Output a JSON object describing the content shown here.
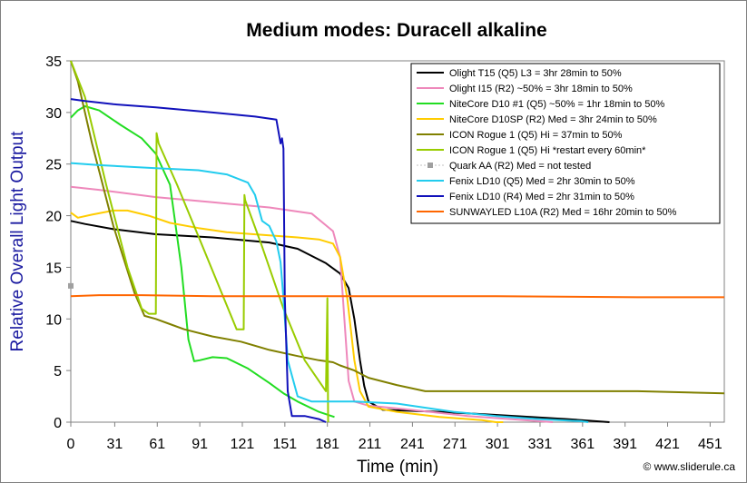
{
  "chart_data": {
    "type": "line",
    "title": "Medium modes: Duracell alkaline",
    "xlabel": "Time (min)",
    "ylabel": "Relative Overall Light Output",
    "xlim": [
      0,
      461
    ],
    "ylim": [
      0,
      35
    ],
    "xticks": [
      0,
      31,
      61,
      91,
      121,
      151,
      181,
      211,
      241,
      271,
      301,
      331,
      361,
      391,
      421,
      451
    ],
    "yticks": [
      0,
      5,
      10,
      15,
      20,
      25,
      30,
      35
    ],
    "legend_position": "top-right",
    "grid": false,
    "credit": "© www.sliderule.ca",
    "series": [
      {
        "name": "Olight T15 (Q5) L3 = 3hr 28min to 50%",
        "color": "#000000",
        "x": [
          0,
          10,
          30,
          60,
          100,
          140,
          160,
          180,
          190,
          196,
          200,
          204,
          207,
          210,
          220,
          260,
          300,
          350,
          380
        ],
        "y": [
          19.5,
          19.2,
          18.7,
          18.2,
          17.9,
          17.4,
          16.8,
          15.4,
          14.4,
          13.0,
          10.0,
          6.0,
          3.5,
          2.0,
          1.2,
          1.0,
          0.7,
          0.3,
          0.0
        ]
      },
      {
        "name": "Olight I15 (R2) ~50% = 3hr 18min to 50%",
        "color": "#ee88bb",
        "x": [
          0,
          20,
          60,
          100,
          140,
          170,
          185,
          190,
          193,
          196,
          200,
          210,
          240,
          280,
          320,
          340
        ],
        "y": [
          22.8,
          22.5,
          21.8,
          21.3,
          20.8,
          20.2,
          18.5,
          16.0,
          10.0,
          4.0,
          2.0,
          1.6,
          1.2,
          0.6,
          0.2,
          0.0
        ]
      },
      {
        "name": "NiteCore D10 #1 (Q5) ~50% = 1hr 18min to 50%",
        "color": "#22dd22",
        "x": [
          0,
          5,
          10,
          20,
          35,
          50,
          60,
          70,
          78,
          83,
          87,
          91,
          100,
          110,
          125,
          140,
          150,
          160,
          175,
          186
        ],
        "y": [
          29.5,
          30.2,
          30.6,
          30.2,
          28.8,
          27.5,
          26.0,
          23.0,
          15.0,
          8.0,
          5.9,
          6.0,
          6.3,
          6.2,
          5.2,
          3.8,
          2.8,
          2.0,
          1.0,
          0.5
        ]
      },
      {
        "name": "NiteCore D10SP (R2) Med = 3hr 24min to 50%",
        "color": "#ffcc00",
        "x": [
          0,
          5,
          15,
          30,
          40,
          55,
          70,
          90,
          110,
          140,
          160,
          175,
          185,
          190,
          195,
          200,
          204,
          210,
          230,
          260,
          290,
          300,
          305
        ],
        "y": [
          20.3,
          19.8,
          20.1,
          20.5,
          20.5,
          20.0,
          19.3,
          18.8,
          18.4,
          18.1,
          17.9,
          17.7,
          17.3,
          16.0,
          12.0,
          6.0,
          3.0,
          1.5,
          1.0,
          0.5,
          0.2,
          0.0,
          0.0
        ]
      },
      {
        "name": "ICON Rogue 1 (Q5) Hi = 37min to 50%",
        "color": "#808000",
        "x": [
          0,
          5,
          15,
          30,
          45,
          52,
          60,
          70,
          80,
          100,
          120,
          140,
          160,
          175,
          185,
          190,
          200,
          210,
          230,
          250,
          300,
          350,
          400,
          461
        ],
        "y": [
          35.0,
          33.0,
          27.0,
          19.0,
          12.5,
          10.3,
          10.0,
          9.5,
          9.0,
          8.3,
          7.8,
          7.0,
          6.4,
          6.0,
          5.8,
          5.5,
          5.0,
          4.3,
          3.6,
          3.0,
          3.0,
          3.0,
          3.0,
          2.8
        ]
      },
      {
        "name": "ICON Rogue 1 (Q5) Hi *restart every 60min*",
        "color": "#99cc00",
        "x": [
          0,
          10,
          25,
          40,
          50,
          55,
          60,
          60.5,
          62,
          75,
          90,
          105,
          117,
          122,
          122.5,
          123,
          135,
          150,
          165,
          180,
          181,
          181.5
        ],
        "y": [
          35.0,
          31.5,
          23.0,
          15.0,
          11.0,
          10.5,
          10.5,
          28.0,
          27.0,
          23.0,
          18.0,
          13.0,
          9.0,
          9.0,
          22.0,
          21.5,
          17.0,
          11.0,
          6.0,
          3.0,
          12.0,
          0.0
        ]
      },
      {
        "name": "Quark AA (R2) Med = not tested",
        "color": "#a0a0a0",
        "marker": "square",
        "x": [
          0
        ],
        "y": [
          13.2
        ]
      },
      {
        "name": "Fenix LD10 (Q5) Med = 2hr 30min to 50%",
        "color": "#22ccee",
        "x": [
          0,
          20,
          60,
          90,
          110,
          125,
          130,
          135,
          140,
          145,
          148,
          150,
          153,
          160,
          170,
          180,
          200,
          230,
          270,
          300,
          330,
          360,
          365
        ],
        "y": [
          25.1,
          24.9,
          24.6,
          24.4,
          24.0,
          23.2,
          22.0,
          19.5,
          19.0,
          17.5,
          15.5,
          12.0,
          6.0,
          2.5,
          2.0,
          2.0,
          2.0,
          1.8,
          1.0,
          0.6,
          0.3,
          0.1,
          0.0
        ]
      },
      {
        "name": "Fenix LD10 (R4) Med = 2hr 31min to 50%",
        "color": "#1111bb",
        "x": [
          0,
          10,
          30,
          60,
          100,
          130,
          145,
          148,
          149,
          150,
          151,
          153,
          156,
          165,
          175,
          180
        ],
        "y": [
          31.3,
          31.1,
          30.8,
          30.5,
          30.0,
          29.6,
          29.3,
          27.0,
          27.5,
          26.5,
          12.0,
          3.0,
          0.6,
          0.6,
          0.3,
          0.0
        ]
      },
      {
        "name": "SUNWAYLED L10A (R2) Med = 16hr 20min to 50%",
        "color": "#ff6600",
        "x": [
          0,
          20,
          50,
          100,
          200,
          300,
          400,
          461
        ],
        "y": [
          12.2,
          12.3,
          12.3,
          12.2,
          12.2,
          12.2,
          12.1,
          12.1
        ]
      }
    ]
  }
}
